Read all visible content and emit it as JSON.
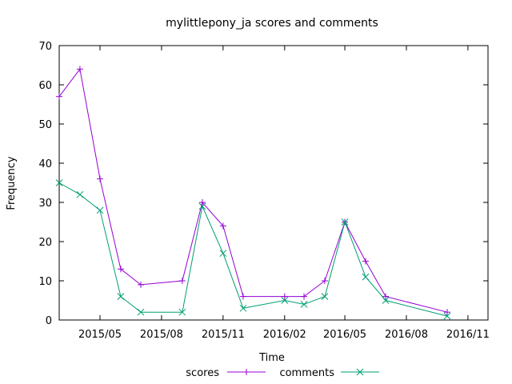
{
  "chart_data": {
    "type": "line",
    "title": "mylittlepony_ja scores and comments",
    "xlabel": "Time",
    "ylabel": "Frequency",
    "ylim": [
      0,
      70
    ],
    "yticks": [
      0,
      10,
      20,
      30,
      40,
      50,
      60,
      70
    ],
    "xlim": [
      "2015-03-01",
      "2016-12-01"
    ],
    "xticks": [
      {
        "date": "2015-05-01",
        "label": "2015/05"
      },
      {
        "date": "2015-08-01",
        "label": "2015/08"
      },
      {
        "date": "2015-11-01",
        "label": "2015/11"
      },
      {
        "date": "2016-02-01",
        "label": "2016/02"
      },
      {
        "date": "2016-05-01",
        "label": "2016/05"
      },
      {
        "date": "2016-08-01",
        "label": "2016/08"
      },
      {
        "date": "2016-11-01",
        "label": "2016/11"
      }
    ],
    "grid": false,
    "legend_position": "bottom",
    "series": [
      {
        "name": "scores",
        "color": "#9400d3",
        "marker": "plus",
        "points": [
          [
            "2015-03-01",
            57
          ],
          [
            "2015-04-01",
            64
          ],
          [
            "2015-05-01",
            36
          ],
          [
            "2015-06-01",
            13
          ],
          [
            "2015-07-01",
            9
          ],
          [
            "2015-09-01",
            10
          ],
          [
            "2015-10-01",
            30
          ],
          [
            "2015-11-01",
            24
          ],
          [
            "2015-12-01",
            6
          ],
          [
            "2016-02-01",
            6
          ],
          [
            "2016-03-01",
            6
          ],
          [
            "2016-04-01",
            10
          ],
          [
            "2016-05-01",
            25
          ],
          [
            "2016-06-01",
            15
          ],
          [
            "2016-07-01",
            6
          ],
          [
            "2016-10-01",
            2
          ]
        ]
      },
      {
        "name": "comments",
        "color": "#009e73",
        "marker": "x",
        "points": [
          [
            "2015-03-01",
            35
          ],
          [
            "2015-04-01",
            32
          ],
          [
            "2015-05-01",
            28
          ],
          [
            "2015-06-01",
            6
          ],
          [
            "2015-07-01",
            2
          ],
          [
            "2015-09-01",
            2
          ],
          [
            "2015-10-01",
            29
          ],
          [
            "2015-11-01",
            17
          ],
          [
            "2015-12-01",
            3
          ],
          [
            "2016-02-01",
            5
          ],
          [
            "2016-03-01",
            4
          ],
          [
            "2016-04-01",
            6
          ],
          [
            "2016-05-01",
            25
          ],
          [
            "2016-06-01",
            11
          ],
          [
            "2016-07-01",
            5
          ],
          [
            "2016-10-01",
            1
          ]
        ]
      }
    ]
  }
}
